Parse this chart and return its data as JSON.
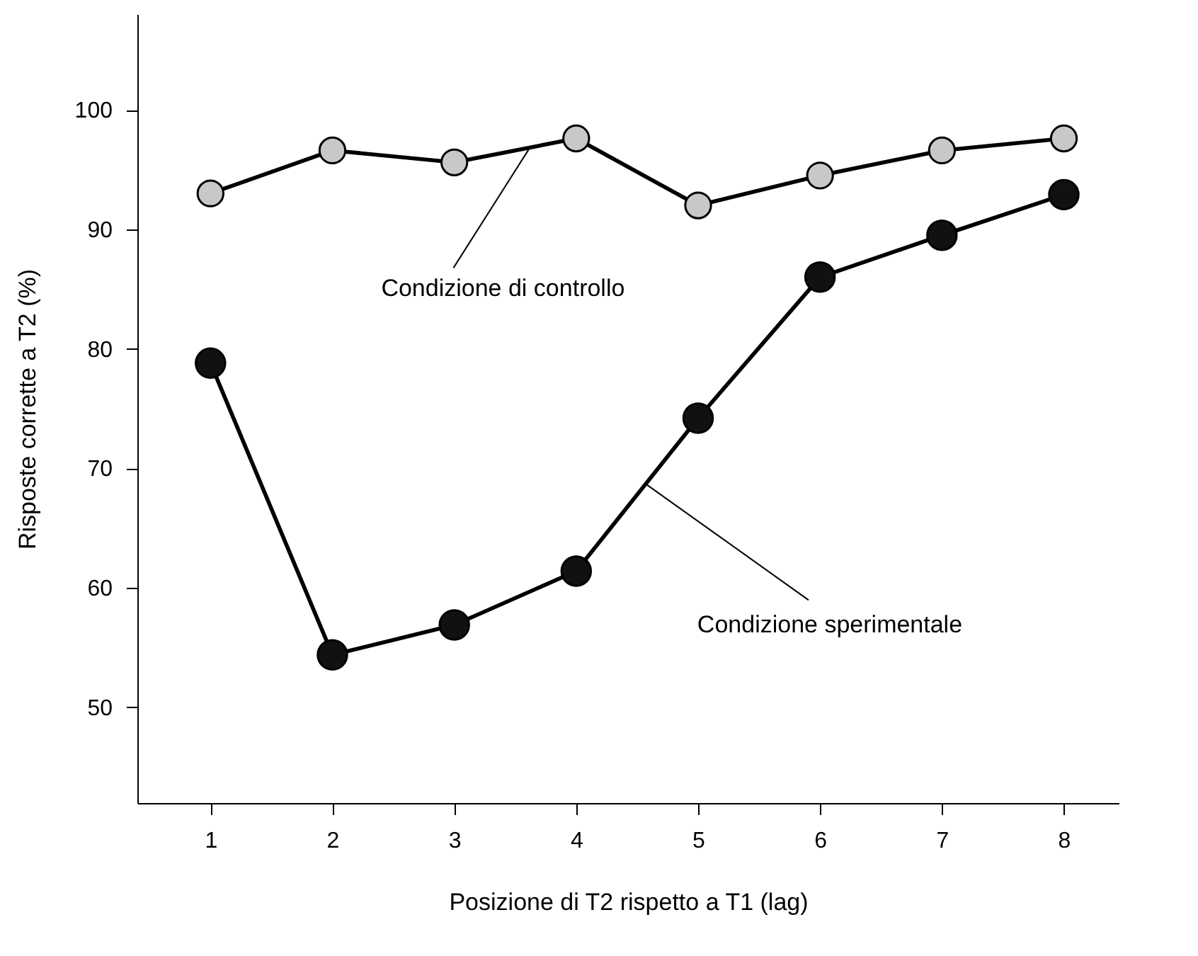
{
  "chart_data": {
    "type": "line",
    "xlabel": "Posizione di T2 rispetto a T1 (lag)",
    "ylabel": "Risposte corrette a T2 (%)",
    "x": [
      1,
      2,
      3,
      4,
      5,
      6,
      7,
      8
    ],
    "series": [
      {
        "color": "#c8c8c8",
        "values": [
          93.0,
          96.6,
          95.6,
          97.6,
          92.0,
          94.5,
          96.6,
          97.6
        ]
      },
      {
        "color": "#111111",
        "values": [
          78.8,
          54.4,
          56.9,
          61.4,
          74.2,
          86.0,
          89.5,
          92.9
        ]
      }
    ],
    "annotations": [
      {
        "text": "Condizione di controllo",
        "x": 3.62,
        "y": 96.84
      },
      {
        "text": "Condizione sperimentale",
        "x": 4.57,
        "y": 68.7
      }
    ],
    "xlim": [
      0.4,
      8.45
    ],
    "ylim": [
      42,
      108
    ],
    "xticks": [
      1,
      2,
      3,
      4,
      5,
      6,
      7,
      8
    ],
    "yticks": [
      50,
      60,
      70,
      80,
      90,
      100
    ],
    "marker": "circle",
    "line_style": "solid"
  }
}
